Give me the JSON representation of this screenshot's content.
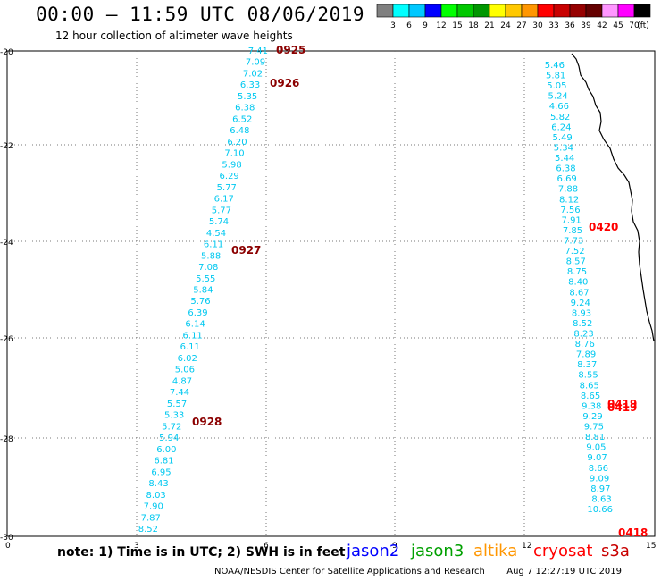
{
  "header": {
    "title": "00:00 – 11:59 UTC 08/06/2019",
    "subtitle": "12 hour collection of altimeter wave heights"
  },
  "color_scale": {
    "unit": "(ft)",
    "labels": [
      "3",
      "6",
      "9",
      "12",
      "15",
      "18",
      "21",
      "24",
      "27",
      "30",
      "33",
      "36",
      "39",
      "42",
      "45",
      "70"
    ],
    "colors": [
      "#808080",
      "#00ffff",
      "#00c8ff",
      "#0000ff",
      "#00ff00",
      "#00c800",
      "#009600",
      "#ffff00",
      "#ffc800",
      "#ff9600",
      "#ff0000",
      "#c80000",
      "#960000",
      "#640000",
      "#ff96ff",
      "#ff00ff",
      "#000000"
    ]
  },
  "axes": {
    "x_ticks": [
      "0",
      "3",
      "6",
      "9",
      "12",
      "15"
    ],
    "y_ticks": [
      "-20",
      "-22",
      "-24",
      "-26",
      "-28",
      "-30"
    ]
  },
  "tracks": [
    {
      "name": "track-a",
      "color": "#00c8f0",
      "values": [
        "7.41",
        "7.09",
        "7.02",
        "6.33",
        "5.35",
        "6.38",
        "6.52",
        "6.48",
        "6.20",
        "7.10",
        "5.98",
        "6.29",
        "5.77",
        "6.17",
        "5.77",
        "5.74",
        "4.54",
        "6.11",
        "5.88",
        "7.08",
        "5.55",
        "5.84",
        "5.76",
        "6.39",
        "6.14",
        "6.11",
        "6.11",
        "6.02",
        "5.06",
        "4.87",
        "7.44",
        "5.57",
        "5.33",
        "5.72",
        "5.94",
        "6.00",
        "6.81",
        "6.95",
        "8.43",
        "8.03",
        "7.90",
        "7.87",
        "8.52"
      ]
    },
    {
      "name": "track-b",
      "color": "#00c8f0",
      "values": [
        "5.46",
        "5.81",
        "5.05",
        "5.24",
        "4.66",
        "5.82",
        "6.24",
        "5.49",
        "5.34",
        "5.44",
        "6.38",
        "6.69",
        "7.88",
        "8.12",
        "7.56",
        "7.91",
        "7.85",
        "7.73",
        "7.52",
        "8.57",
        "8.75",
        "8.40",
        "8.67",
        "9.24",
        "8.93",
        "8.52",
        "8.23",
        "8.76",
        "7.89",
        "8.37",
        "8.55",
        "8.65",
        "8.65",
        "9.38",
        "9.29",
        "9.75",
        "8.81",
        "9.05",
        "9.07",
        "8.66",
        "9.09",
        "8.97",
        "8.63",
        "10.66"
      ]
    }
  ],
  "pass_labels": [
    {
      "text": "0925",
      "color": "#8b0000"
    },
    {
      "text": "0926",
      "color": "#8b0000"
    },
    {
      "text": "0927",
      "color": "#8b0000"
    },
    {
      "text": "0928",
      "color": "#8b0000"
    },
    {
      "text": "0420",
      "color": "#ff0000"
    },
    {
      "text": "0419",
      "color": "#ff0000"
    },
    {
      "text": "0419",
      "color": "#ff0000"
    },
    {
      "text": "0418",
      "color": "#ff0000"
    }
  ],
  "note": "note:  1) Time is in UTC;  2) SWH is in feet",
  "satellites": [
    {
      "name": "jason2",
      "color": "#0000ff"
    },
    {
      "name": "jason3",
      "color": "#00a000"
    },
    {
      "name": "altika",
      "color": "#ff9600"
    },
    {
      "name": "cryosat",
      "color": "#ff0000"
    },
    {
      "name": "s3a",
      "color": "#c80000"
    }
  ],
  "footer": {
    "credit": "NOAA/NESDIS Center for Satellite Applications and Research",
    "timestamp": "Aug  7 12:27:19 UTC 2019"
  }
}
